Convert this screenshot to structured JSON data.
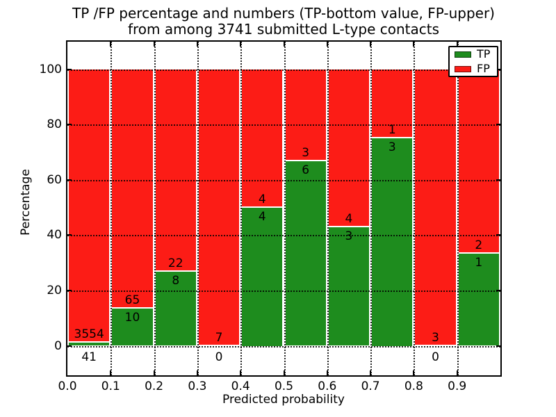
{
  "title": {
    "line1": "TP /FP percentage and numbers (TP-bottom value, FP-upper)",
    "line2": "from among 3741 submitted L-type contacts"
  },
  "axes": {
    "ylabel": "Percentage",
    "xlabel": "Predicted probability",
    "yticks": [
      0,
      20,
      40,
      60,
      80,
      100
    ],
    "xtick_labels": [
      "0.0",
      "0.1",
      "0.2",
      "0.3",
      "0.4",
      "0.5",
      "0.6",
      "0.7",
      "0.8",
      "0.9"
    ],
    "xlim": [
      0.0,
      1.0
    ],
    "ylim": [
      -11,
      110
    ],
    "grid_style": "dotted"
  },
  "legend": {
    "position": "upper-right",
    "items": [
      {
        "label": "TP",
        "color": "#1e8c1e"
      },
      {
        "label": "FP",
        "color": "#fc1c16"
      }
    ]
  },
  "colors": {
    "tp": "#1e8c1e",
    "fp": "#fc1c16",
    "background": "#ffffff",
    "text": "#000000",
    "bar_edge": "#ffffff"
  },
  "chart_data": {
    "type": "bar",
    "stacked": true,
    "normalized_to_percent": true,
    "title": "TP /FP percentage and numbers (TP-bottom value, FP-upper) from among 3741 submitted L-type contacts",
    "xlabel": "Predicted probability",
    "ylabel": "Percentage",
    "total_contacts": 3741,
    "bin_width": 0.1,
    "categories": [
      "0.0-0.1",
      "0.1-0.2",
      "0.2-0.3",
      "0.3-0.4",
      "0.4-0.5",
      "0.5-0.6",
      "0.6-0.7",
      "0.7-0.8",
      "0.8-0.9",
      "0.9-1.0"
    ],
    "series": [
      {
        "name": "TP",
        "counts": [
          41,
          10,
          8,
          0,
          4,
          6,
          3,
          3,
          0,
          1
        ],
        "percent": [
          1.14,
          13.33,
          26.67,
          0.0,
          50.0,
          66.67,
          42.86,
          75.0,
          0.0,
          33.33
        ]
      },
      {
        "name": "FP",
        "counts": [
          3554,
          65,
          22,
          7,
          4,
          3,
          4,
          1,
          3,
          2
        ],
        "percent": [
          98.86,
          86.67,
          73.33,
          100.0,
          50.0,
          33.33,
          57.14,
          25.0,
          100.0,
          66.67
        ]
      }
    ],
    "annotation_rule": "TP count printed below segment boundary, FP count printed above it",
    "legend_position": "upper right",
    "grid": true
  }
}
